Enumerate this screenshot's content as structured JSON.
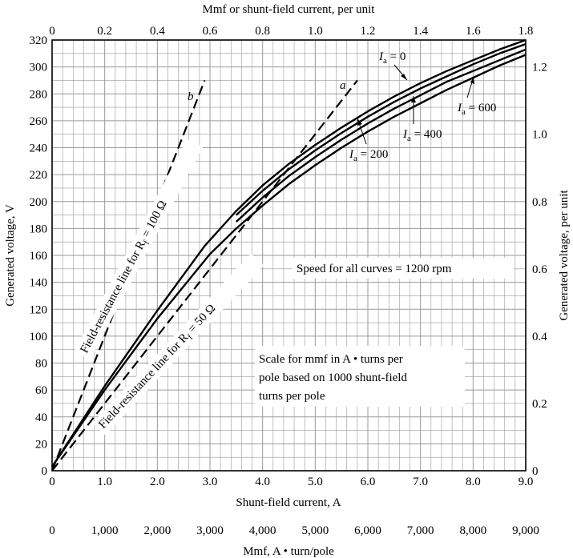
{
  "chart_data": {
    "type": "line",
    "xlabel": "Shunt-field current, A",
    "ylabel": "Generated voltage, V",
    "xlim": [
      0,
      9
    ],
    "ylim": [
      0,
      320
    ],
    "grid": true,
    "x_ticks": [
      "0",
      "1.0",
      "2.0",
      "3.0",
      "4.0",
      "5.0",
      "6.0",
      "7.0",
      "8.0",
      "9.0"
    ],
    "y_ticks": [
      "0",
      "20",
      "40",
      "60",
      "80",
      "100",
      "120",
      "140",
      "160",
      "180",
      "200",
      "220",
      "240",
      "260",
      "280",
      "300",
      "320"
    ],
    "top_axis": {
      "label": "Mmf or shunt-field current, per unit",
      "ticks": [
        "0",
        "0.2",
        "0.4",
        "0.6",
        "0.8",
        "1.0",
        "1.2",
        "1.4",
        "1.6",
        "1.8"
      ]
    },
    "right_axis": {
      "label": "Generated voltage, per unit",
      "ticks": [
        "0",
        "0.2",
        "0.4",
        "0.6",
        "0.8",
        "1.0",
        "1.2"
      ]
    },
    "bottom_axis2": {
      "label": "Mmf, A • turn/pole",
      "ticks": [
        "0",
        "1,000",
        "2,000",
        "3,000",
        "4,000",
        "5,000",
        "6,000",
        "7,000",
        "8,000",
        "9,000"
      ]
    },
    "series": [
      {
        "name": "Ia = 0",
        "x": [
          0,
          1,
          2,
          2.9,
          3.5,
          4,
          4.5,
          5,
          5.5,
          6,
          6.5,
          7,
          7.5,
          8,
          8.5,
          9
        ],
        "y": [
          3,
          63,
          119,
          167,
          193,
          212,
          228,
          242,
          255,
          267,
          278,
          288,
          297,
          305,
          313,
          320
        ]
      },
      {
        "name": "Ia = 200",
        "x": [
          3.5,
          4,
          4.5,
          5,
          5.5,
          6,
          6.5,
          7,
          7.5,
          8,
          8.5,
          9
        ],
        "y": [
          190,
          208,
          224,
          238,
          251,
          263,
          274,
          284,
          293,
          302,
          310,
          317
        ]
      },
      {
        "name": "Ia = 400",
        "x": [
          3.5,
          4,
          4.5,
          5,
          5.5,
          6,
          6.5,
          7,
          7.5,
          8,
          8.5,
          9
        ],
        "y": [
          185,
          203,
          219,
          233,
          246,
          258,
          269,
          279,
          289,
          297,
          305,
          313
        ]
      },
      {
        "name": "Ia = 600",
        "x": [
          0,
          1,
          2,
          3,
          3.5,
          4,
          4.5,
          5,
          5.5,
          6,
          6.5,
          7,
          7.5,
          8,
          8.5,
          9
        ],
        "y": [
          3,
          60,
          113,
          161,
          180,
          197,
          213,
          227,
          240,
          252,
          263,
          273,
          283,
          292,
          301,
          309
        ]
      },
      {
        "name": "a",
        "x": [
          0,
          5.8
        ],
        "y": [
          0,
          290
        ]
      },
      {
        "name": "b",
        "x": [
          0,
          2.9
        ],
        "y": [
          0,
          290
        ]
      }
    ],
    "annotations": {
      "curve_label_a": "a",
      "curve_label_b": "b",
      "ia0": "0",
      "ia200": "200",
      "ia400": "400",
      "ia600": "600",
      "label_I": "I",
      "label_a_sub": "a",
      "rf100": "Field-resistance line for R",
      "rf100_value": " = 100 Ω",
      "rf50": "Field-resistance line for R",
      "rf50_value": " = 50 Ω",
      "rf_sub": "f",
      "speed": "Speed for all curves = 1200 rpm",
      "scale_line1": "Scale for mmf in A • turns per",
      "scale_line2": "pole based on 1000 shunt-field",
      "scale_line3": "turns per pole"
    }
  }
}
